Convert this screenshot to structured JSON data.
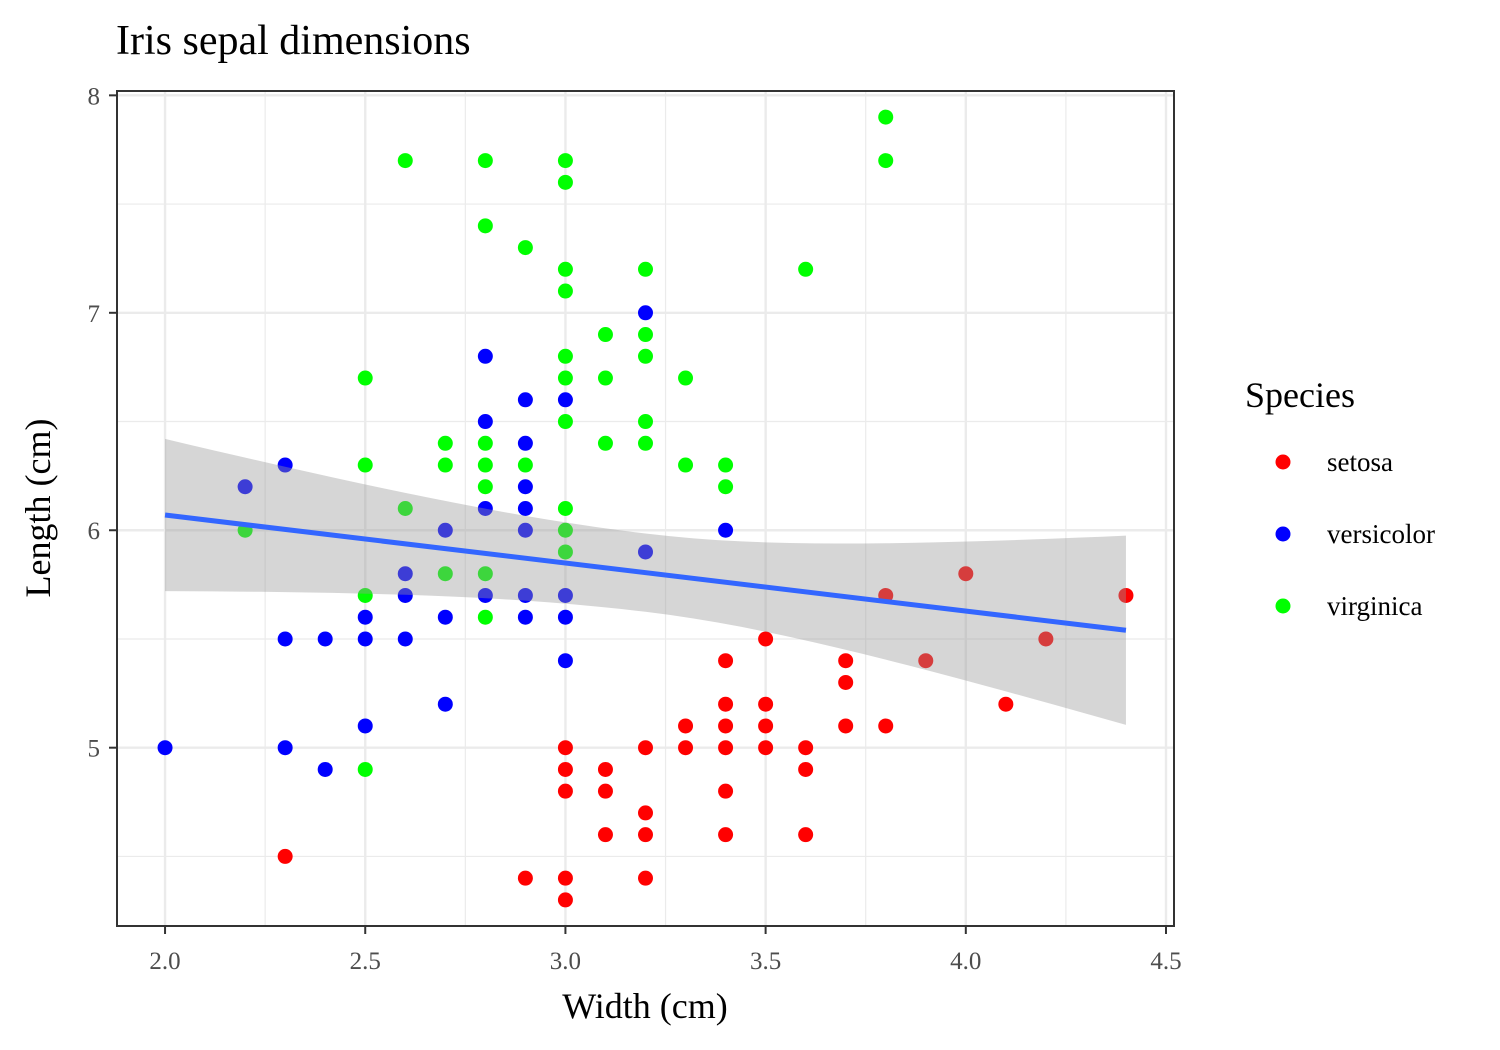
{
  "chart_data": {
    "type": "scatter",
    "title": "Iris sepal dimensions",
    "xlabel": "Width (cm)",
    "ylabel": "Length (cm)",
    "xlim": [
      1.88,
      4.52
    ],
    "ylim": [
      4.18,
      8.02
    ],
    "x_ticks": [
      "2.0",
      "2.5",
      "3.0",
      "3.5",
      "4.0",
      "4.5"
    ],
    "y_ticks": [
      "5",
      "6",
      "7",
      "8"
    ],
    "grid": true,
    "legend": {
      "title": "Species",
      "position": "right"
    },
    "series": [
      {
        "name": "setosa",
        "color": "#ff0000",
        "points": [
          [
            2.3,
            4.5
          ],
          [
            2.9,
            4.4
          ],
          [
            3.0,
            5.0
          ],
          [
            3.0,
            4.9
          ],
          [
            3.0,
            4.8
          ],
          [
            3.0,
            4.4
          ],
          [
            3.0,
            4.3
          ],
          [
            3.1,
            4.9
          ],
          [
            3.1,
            4.8
          ],
          [
            3.1,
            4.6
          ],
          [
            3.2,
            5.0
          ],
          [
            3.2,
            4.7
          ],
          [
            3.2,
            4.6
          ],
          [
            3.2,
            4.4
          ],
          [
            3.3,
            5.1
          ],
          [
            3.3,
            5.0
          ],
          [
            3.4,
            5.4
          ],
          [
            3.4,
            5.2
          ],
          [
            3.4,
            5.1
          ],
          [
            3.4,
            5.0
          ],
          [
            3.4,
            4.8
          ],
          [
            3.4,
            4.6
          ],
          [
            3.5,
            5.5
          ],
          [
            3.5,
            5.2
          ],
          [
            3.5,
            5.1
          ],
          [
            3.5,
            5.0
          ],
          [
            3.6,
            5.0
          ],
          [
            3.6,
            4.9
          ],
          [
            3.6,
            4.6
          ],
          [
            3.7,
            5.4
          ],
          [
            3.7,
            5.3
          ],
          [
            3.7,
            5.1
          ],
          [
            3.8,
            5.7
          ],
          [
            3.8,
            5.1
          ],
          [
            3.9,
            5.4
          ],
          [
            4.0,
            5.8
          ],
          [
            4.1,
            5.2
          ],
          [
            4.2,
            5.5
          ],
          [
            4.4,
            5.7
          ]
        ]
      },
      {
        "name": "versicolor",
        "color": "#0000ff",
        "points": [
          [
            2.0,
            5.0
          ],
          [
            2.2,
            6.2
          ],
          [
            2.3,
            6.3
          ],
          [
            2.3,
            5.5
          ],
          [
            2.3,
            5.0
          ],
          [
            2.4,
            5.5
          ],
          [
            2.4,
            4.9
          ],
          [
            2.5,
            5.6
          ],
          [
            2.5,
            5.5
          ],
          [
            2.5,
            5.1
          ],
          [
            2.6,
            5.8
          ],
          [
            2.6,
            5.7
          ],
          [
            2.6,
            5.5
          ],
          [
            2.7,
            6.0
          ],
          [
            2.7,
            5.6
          ],
          [
            2.7,
            5.2
          ],
          [
            2.8,
            6.8
          ],
          [
            2.8,
            6.5
          ],
          [
            2.8,
            6.1
          ],
          [
            2.8,
            5.7
          ],
          [
            2.9,
            6.6
          ],
          [
            2.9,
            6.4
          ],
          [
            2.9,
            6.2
          ],
          [
            2.9,
            6.1
          ],
          [
            2.9,
            6.0
          ],
          [
            2.9,
            5.7
          ],
          [
            2.9,
            5.6
          ],
          [
            3.0,
            6.6
          ],
          [
            3.0,
            5.7
          ],
          [
            3.0,
            5.6
          ],
          [
            3.0,
            5.4
          ],
          [
            3.2,
            7.0
          ],
          [
            3.2,
            5.9
          ],
          [
            3.4,
            6.0
          ]
        ]
      },
      {
        "name": "virginica",
        "color": "#00ff00",
        "points": [
          [
            2.2,
            6.0
          ],
          [
            2.5,
            6.7
          ],
          [
            2.5,
            6.3
          ],
          [
            2.5,
            5.7
          ],
          [
            2.5,
            4.9
          ],
          [
            2.6,
            7.7
          ],
          [
            2.6,
            6.1
          ],
          [
            2.7,
            6.4
          ],
          [
            2.7,
            6.3
          ],
          [
            2.7,
            5.8
          ],
          [
            2.8,
            7.7
          ],
          [
            2.8,
            7.4
          ],
          [
            2.8,
            6.4
          ],
          [
            2.8,
            6.3
          ],
          [
            2.8,
            6.2
          ],
          [
            2.8,
            5.8
          ],
          [
            2.8,
            5.6
          ],
          [
            2.9,
            7.3
          ],
          [
            2.9,
            6.3
          ],
          [
            3.0,
            7.7
          ],
          [
            3.0,
            7.6
          ],
          [
            3.0,
            7.2
          ],
          [
            3.0,
            7.1
          ],
          [
            3.0,
            6.8
          ],
          [
            3.0,
            6.7
          ],
          [
            3.0,
            6.5
          ],
          [
            3.0,
            6.1
          ],
          [
            3.0,
            6.0
          ],
          [
            3.0,
            5.9
          ],
          [
            3.1,
            6.9
          ],
          [
            3.1,
            6.7
          ],
          [
            3.1,
            6.4
          ],
          [
            3.2,
            7.2
          ],
          [
            3.2,
            6.9
          ],
          [
            3.2,
            6.8
          ],
          [
            3.2,
            6.5
          ],
          [
            3.2,
            6.4
          ],
          [
            3.3,
            6.7
          ],
          [
            3.3,
            6.3
          ],
          [
            3.4,
            6.3
          ],
          [
            3.4,
            6.2
          ],
          [
            3.6,
            7.2
          ],
          [
            3.8,
            7.9
          ],
          [
            3.8,
            7.7
          ]
        ]
      }
    ],
    "trend": {
      "method": "linear",
      "color": "#3366ff",
      "band_color": "#999999",
      "x": [
        2.0,
        4.4
      ],
      "y": [
        6.07,
        5.54
      ],
      "ci_lower": [
        5.73,
        5.11
      ],
      "ci_upper": [
        6.43,
        5.98
      ]
    }
  }
}
